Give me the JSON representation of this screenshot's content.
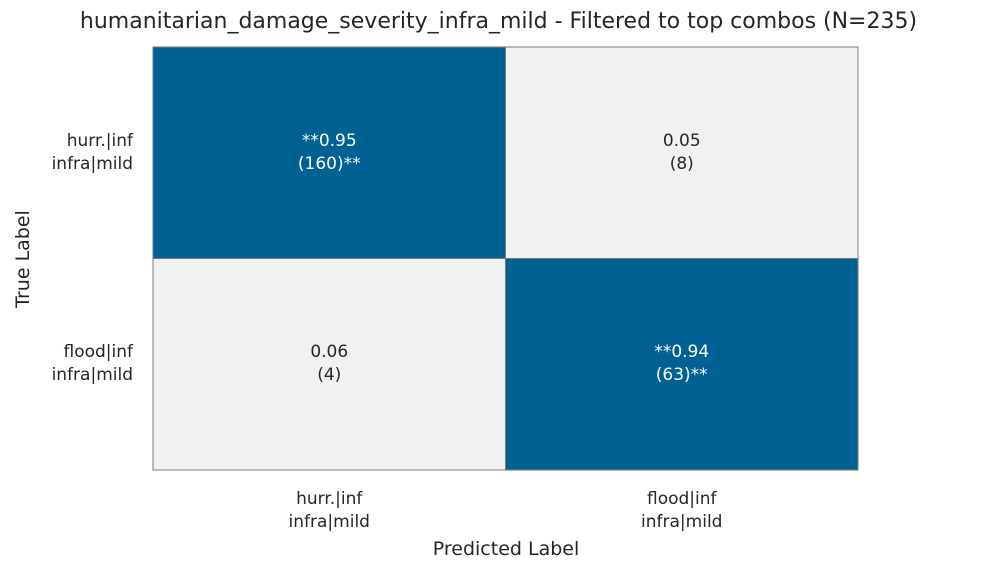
{
  "chart_data": {
    "type": "heatmap",
    "title": "humanitarian_damage_severity_infra_mild - Filtered to top combos (N=235)",
    "xlabel": "Predicted Label",
    "ylabel": "True Label",
    "row_labels": [
      "hurr.|inf\ninfra|mild",
      "flood|inf\ninfra|mild"
    ],
    "col_labels": [
      "hurr.|inf\ninfra|mild",
      "flood|inf\ninfra|mild"
    ],
    "values": [
      [
        0.95,
        0.05
      ],
      [
        0.06,
        0.94
      ]
    ],
    "counts": [
      [
        160,
        8
      ],
      [
        4,
        63
      ]
    ],
    "cell_text": [
      [
        "**0.95\n(160)**",
        "0.05\n(8)"
      ],
      [
        "0.06\n(4)",
        "**0.94\n(63)**"
      ]
    ],
    "grid": true,
    "colors": {
      "high": "#006293",
      "low": "#f0f1f3",
      "high_text": "#ffffff",
      "low_text": "#262626",
      "border": "#7a7a7a"
    }
  }
}
